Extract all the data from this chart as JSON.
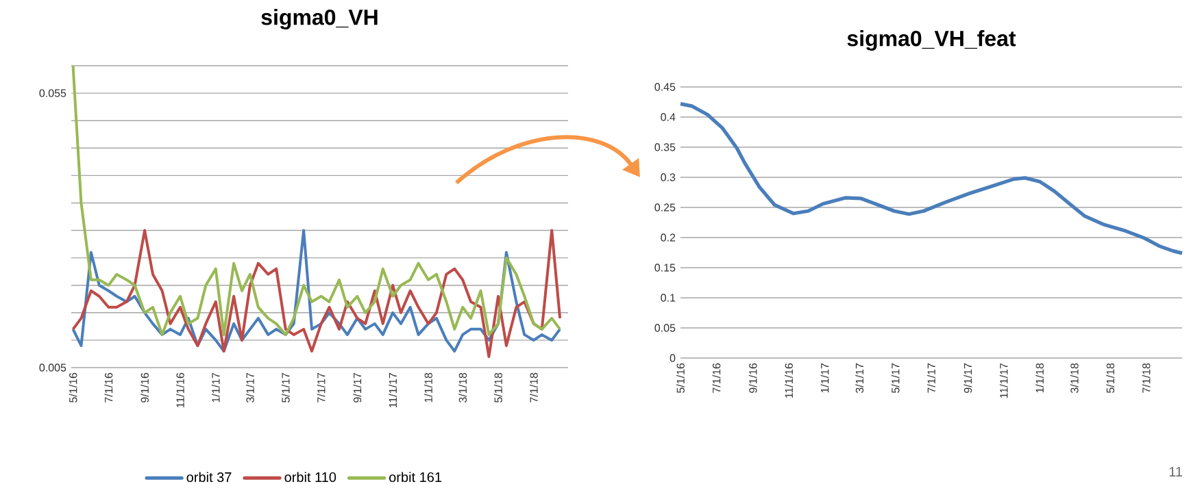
{
  "chart_data": [
    {
      "type": "line",
      "title": "sigma0_VH",
      "grid": "y",
      "legend": "bottom",
      "xlim": [
        "2016-04-28",
        "2018-08-29"
      ],
      "ylim": [
        0.005,
        0.06
      ],
      "yticks": [
        0.005,
        {
          "value": 0.01,
          "label": null
        },
        {
          "value": 0.015,
          "label": null
        },
        {
          "value": 0.02,
          "label": null
        },
        {
          "value": 0.025,
          "label": null
        },
        {
          "value": 0.03,
          "label": null
        },
        {
          "value": 0.035,
          "label": null
        },
        {
          "value": 0.04,
          "label": null
        },
        {
          "value": 0.045,
          "label": null
        },
        {
          "value": 0.05,
          "label": null
        },
        0.055,
        {
          "value": 0.06,
          "label": null
        }
      ],
      "xticks": [
        {
          "value": "2016-05-01",
          "label": "5/1/16"
        },
        {
          "value": "2016-07-01",
          "label": "7/1/16"
        },
        {
          "value": "2016-09-01",
          "label": "9/1/16"
        },
        {
          "value": "2016-11-01",
          "label": "11/1/16"
        },
        {
          "value": "2017-01-01",
          "label": "1/1/17"
        },
        {
          "value": "2017-03-01",
          "label": "3/1/17"
        },
        {
          "value": "2017-05-01",
          "label": "5/1/17"
        },
        {
          "value": "2017-07-01",
          "label": "7/1/17"
        },
        {
          "value": "2017-09-01",
          "label": "9/1/17"
        },
        {
          "value": "2017-11-01",
          "label": "11/1/17"
        },
        {
          "value": "2018-01-01",
          "label": "1/1/18"
        },
        {
          "value": "2018-03-01",
          "label": "3/1/18"
        },
        {
          "value": "2018-05-01",
          "label": "5/1/18"
        },
        {
          "value": "2018-07-01",
          "label": "7/1/18"
        }
      ],
      "x": [
        "2016-05-01",
        "2016-05-15",
        "2016-06-01",
        "2016-06-15",
        "2016-07-01",
        "2016-07-15",
        "2016-08-01",
        "2016-08-15",
        "2016-09-01",
        "2016-09-15",
        "2016-10-01",
        "2016-10-15",
        "2016-11-01",
        "2016-11-15",
        "2016-12-01",
        "2016-12-15",
        "2017-01-01",
        "2017-01-15",
        "2017-02-01",
        "2017-02-15",
        "2017-03-01",
        "2017-03-15",
        "2017-04-01",
        "2017-04-15",
        "2017-05-01",
        "2017-05-15",
        "2017-06-01",
        "2017-06-15",
        "2017-07-01",
        "2017-07-15",
        "2017-08-01",
        "2017-08-15",
        "2017-09-01",
        "2017-09-15",
        "2017-10-01",
        "2017-10-15",
        "2017-11-01",
        "2017-11-15",
        "2017-12-01",
        "2017-12-15",
        "2018-01-01",
        "2018-01-15",
        "2018-02-01",
        "2018-02-15",
        "2018-03-01",
        "2018-03-15",
        "2018-04-01",
        "2018-04-15",
        "2018-05-01",
        "2018-05-15",
        "2018-06-01",
        "2018-06-15",
        "2018-07-01",
        "2018-07-15",
        "2018-08-01",
        "2018-08-15"
      ],
      "series": [
        {
          "name": "orbit 37",
          "color": "#4a7ebb",
          "values": [
            0.012,
            0.009,
            0.026,
            0.02,
            0.019,
            0.018,
            0.017,
            0.018,
            0.015,
            0.013,
            0.011,
            0.012,
            0.011,
            0.014,
            0.009,
            0.012,
            0.01,
            0.008,
            0.013,
            0.01,
            0.012,
            0.014,
            0.011,
            0.012,
            0.011,
            0.013,
            0.03,
            0.012,
            0.013,
            0.015,
            0.013,
            0.011,
            0.014,
            0.012,
            0.013,
            0.011,
            0.015,
            0.013,
            0.016,
            0.011,
            0.013,
            0.014,
            0.01,
            0.008,
            0.011,
            0.012,
            0.012,
            0.01,
            0.013,
            0.026,
            0.017,
            0.011,
            0.01,
            0.011,
            0.01,
            0.012
          ]
        },
        {
          "name": "orbit 110",
          "color": "#be4b48",
          "values": [
            0.012,
            0.014,
            0.019,
            0.018,
            0.016,
            0.016,
            0.017,
            0.02,
            0.03,
            0.022,
            0.019,
            0.013,
            0.016,
            0.012,
            0.009,
            0.013,
            0.017,
            0.008,
            0.018,
            0.01,
            0.02,
            0.024,
            0.022,
            0.023,
            0.012,
            0.011,
            0.012,
            0.008,
            0.013,
            0.016,
            0.012,
            0.017,
            0.014,
            0.013,
            0.019,
            0.013,
            0.02,
            0.015,
            0.019,
            0.016,
            0.013,
            0.015,
            0.022,
            0.023,
            0.021,
            0.017,
            0.016,
            0.007,
            0.018,
            0.009,
            0.016,
            0.017,
            0.013,
            0.012,
            0.03,
            0.014
          ]
        },
        {
          "name": "orbit 161",
          "color": "#98b954",
          "values": [
            0.06,
            0.035,
            0.021,
            0.021,
            0.02,
            0.022,
            0.021,
            0.02,
            0.015,
            0.016,
            0.011,
            0.015,
            0.018,
            0.013,
            0.014,
            0.02,
            0.023,
            0.011,
            0.024,
            0.019,
            0.022,
            0.016,
            0.014,
            0.013,
            0.011,
            0.014,
            0.02,
            0.017,
            0.018,
            0.017,
            0.021,
            0.016,
            0.018,
            0.015,
            0.017,
            0.023,
            0.018,
            0.02,
            0.021,
            0.024,
            0.021,
            0.022,
            0.017,
            0.012,
            0.016,
            0.014,
            0.019,
            0.011,
            0.013,
            0.025,
            0.022,
            0.018,
            0.013,
            0.012,
            0.014,
            0.012
          ]
        }
      ]
    },
    {
      "type": "line",
      "title": "sigma0_VH_feat",
      "grid": "y",
      "annotations": [
        "11"
      ],
      "xlim": [
        "2016-05-01",
        "2018-08-31"
      ],
      "ylim": [
        0,
        0.45
      ],
      "yticks": [
        0,
        0.05,
        0.1,
        0.15,
        0.2,
        0.25,
        0.3,
        0.35,
        0.4,
        0.45
      ],
      "xticks": [
        {
          "value": "2016-05-01",
          "label": "5/1/16"
        },
        {
          "value": "2016-07-01",
          "label": "7/1/16"
        },
        {
          "value": "2016-09-01",
          "label": "9/1/16"
        },
        {
          "value": "2016-11-01",
          "label": "11/1/16"
        },
        {
          "value": "2017-01-01",
          "label": "1/1/17"
        },
        {
          "value": "2017-03-01",
          "label": "3/1/17"
        },
        {
          "value": "2017-05-01",
          "label": "5/1/17"
        },
        {
          "value": "2017-07-01",
          "label": "7/1/17"
        },
        {
          "value": "2017-09-01",
          "label": "9/1/17"
        },
        {
          "value": "2017-11-01",
          "label": "11/1/17"
        },
        {
          "value": "2018-01-01",
          "label": "1/1/18"
        },
        {
          "value": "2018-03-01",
          "label": "3/1/18"
        },
        {
          "value": "2018-05-01",
          "label": "5/1/18"
        },
        {
          "value": "2018-07-01",
          "label": "7/1/18"
        }
      ],
      "x": [
        "2016-05-01",
        "2016-05-21",
        "2016-06-16",
        "2016-07-11",
        "2016-08-05",
        "2016-08-18",
        "2016-09-12",
        "2016-10-08",
        "2016-11-09",
        "2016-12-04",
        "2016-12-29",
        "2017-02-05",
        "2017-03-03",
        "2017-03-28",
        "2017-04-29",
        "2017-05-24",
        "2017-06-18",
        "2017-07-26",
        "2017-09-03",
        "2017-10-11",
        "2017-11-18",
        "2017-12-07",
        "2018-01-01",
        "2018-01-26",
        "2018-02-21",
        "2018-03-18",
        "2018-04-19",
        "2018-05-27",
        "2018-06-28",
        "2018-07-23",
        "2018-08-15",
        "2018-08-31"
      ],
      "series": [
        {
          "color": "#4a7ebb",
          "values": [
            0.422,
            0.418,
            0.404,
            0.382,
            0.348,
            0.324,
            0.284,
            0.254,
            0.24,
            0.244,
            0.256,
            0.266,
            0.265,
            0.256,
            0.244,
            0.239,
            0.244,
            0.259,
            0.273,
            0.285,
            0.297,
            0.299,
            0.293,
            0.277,
            0.256,
            0.236,
            0.222,
            0.211,
            0.199,
            0.186,
            0.178,
            0.174
          ]
        }
      ]
    }
  ]
}
